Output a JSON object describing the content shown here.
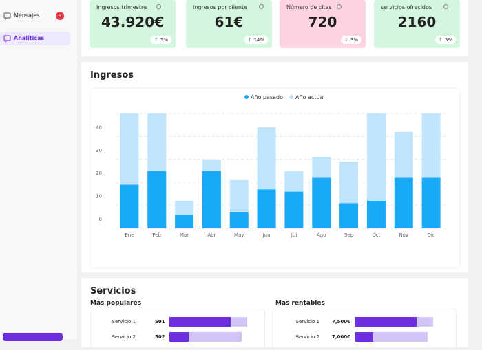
{
  "sidebar": {
    "items": [
      {
        "label": "Mensajes",
        "badge": "9"
      },
      {
        "label": "Analíticas"
      }
    ]
  },
  "cards": [
    {
      "label": "Ingresos trimestre",
      "value": "43.920€",
      "change": "5%",
      "trend": "up",
      "color": "#d5f6de"
    },
    {
      "label": "Ingresos por cliente",
      "value": "61€",
      "change": "14%",
      "trend": "up",
      "color": "#d5f6de"
    },
    {
      "label": "Número de citas",
      "value": "720",
      "change": "3%",
      "trend": "down",
      "color": "#fdd3e2"
    },
    {
      "label": "servicios ofrecidos",
      "value": "2160",
      "change": "5%",
      "trend": "up",
      "color": "#d5f6de"
    }
  ],
  "ingresos_title": "Ingresos",
  "chart_data": {
    "type": "stacked_bar",
    "categories": [
      "Ene",
      "Feb",
      "Mar",
      "Abr",
      "May",
      "Jun",
      "Jul",
      "Ago",
      "Sep",
      "Oct",
      "Nov",
      "Dic"
    ],
    "series": [
      {
        "name": "Año pasado",
        "color": "#17a8f6",
        "values": [
          19,
          25,
          6,
          25,
          7,
          17,
          16,
          22,
          11,
          12,
          22,
          22
        ]
      },
      {
        "name": "Año actual",
        "color": "#bee5fc",
        "values": [
          31,
          25,
          6,
          5,
          14,
          27,
          9,
          9,
          18,
          38,
          20,
          28
        ]
      }
    ],
    "ylim": [
      0,
      50
    ],
    "yticks": [
      0,
      10,
      20,
      30,
      40
    ],
    "grid": true,
    "legend": "top"
  },
  "servicios": {
    "title": "Servicios",
    "populares": {
      "title": "Más populares",
      "rows": [
        {
          "label": "Servicio 1",
          "value": "501"
        },
        {
          "label": "Servicio 2",
          "value": "502"
        }
      ]
    },
    "rentables": {
      "title": "Más rentables",
      "rows": [
        {
          "label": "Servicio 1",
          "value": "7,500€"
        },
        {
          "label": "Servicio 2",
          "value": "7,000€"
        }
      ]
    }
  }
}
